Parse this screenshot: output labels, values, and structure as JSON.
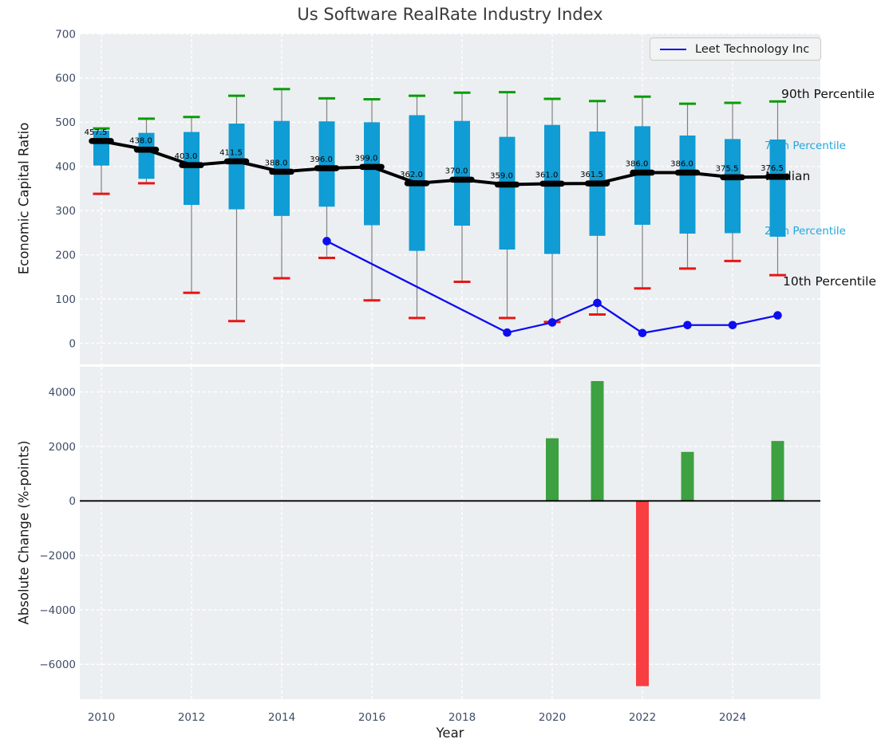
{
  "title": "Us Software RealRate Industry Index",
  "xlabel": "Year",
  "xticks": [
    2010,
    2012,
    2014,
    2016,
    2018,
    2020,
    2022,
    2024
  ],
  "top_panel": {
    "ylabel": "Economic Capital Ratio",
    "yticks": [
      0,
      100,
      200,
      300,
      400,
      500,
      600,
      700
    ],
    "legend_label": "Leet Technology Inc",
    "annotations": {
      "p90": "90th Percentile",
      "p75": "75th Percentile",
      "median": "Median",
      "p25": "25th Percentile",
      "p10": "10th Percentile"
    }
  },
  "bottom_panel": {
    "ylabel": "Absolute Change (%-points)",
    "yticks": [
      4000,
      2000,
      0,
      -2000,
      -4000,
      -6000
    ]
  },
  "chart_data": [
    {
      "type": "boxplot",
      "panel": "top",
      "title": "Us Software RealRate Industry Index",
      "xlabel": "Year",
      "ylabel": "Economic Capital Ratio",
      "ylim": [
        -48,
        701
      ],
      "xlim": [
        2009.5,
        2026
      ],
      "grid": true,
      "years": [
        2010,
        2011,
        2012,
        2013,
        2014,
        2015,
        2016,
        2017,
        2018,
        2019,
        2020,
        2021,
        2022,
        2023,
        2024,
        2025
      ],
      "p90": [
        486,
        508,
        512,
        560,
        575,
        554,
        552,
        560,
        567,
        568,
        553,
        548,
        558,
        542,
        544,
        547
      ],
      "q3": [
        481,
        476,
        478,
        497,
        503,
        502,
        500,
        516,
        503,
        467,
        494,
        479,
        491,
        470,
        462,
        461
      ],
      "median": [
        457.5,
        438.0,
        403.0,
        411.5,
        388.0,
        396.0,
        399.0,
        362.0,
        370.0,
        359.0,
        361.0,
        361.5,
        386.0,
        386.0,
        375.5,
        376.5
      ],
      "q1": [
        402,
        372,
        313,
        303,
        288,
        309,
        267,
        209,
        266,
        212,
        202,
        243,
        268,
        248,
        249,
        241
      ],
      "p10": [
        338,
        362,
        114,
        50,
        147,
        193,
        97,
        57,
        139,
        57,
        48,
        65,
        124,
        169,
        186,
        154
      ],
      "company_line": {
        "name": "Leet Technology Inc",
        "years": [
          2015,
          2019,
          2020,
          2021,
          2022,
          2023,
          2024,
          2025
        ],
        "values": [
          231,
          24,
          47,
          91,
          23,
          41,
          41,
          63
        ]
      },
      "legend_position": "upper right"
    },
    {
      "type": "bar",
      "panel": "bottom",
      "xlabel": "Year",
      "ylabel": "Absolute Change (%-points)",
      "ylim": [
        -7280,
        4930
      ],
      "grid": true,
      "years": [
        2020,
        2021,
        2022,
        2023,
        2025
      ],
      "values": [
        2300,
        4400,
        -6800,
        1800,
        2200
      ],
      "positive_color": "#3da041",
      "negative_color": "#f83e41"
    }
  ],
  "colors": {
    "axes_background": "#eceff1",
    "gridline": "#ffffff",
    "tick_label": "#3e4d66",
    "box_fill": "#109cd4",
    "whisker": "#808080",
    "cap_90th": "#0a9c0a",
    "cap_10th": "#e81616",
    "median_line": "#000000",
    "company_line": "#0d0df2",
    "bar_positive": "#3da041",
    "bar_negative": "#f83e41",
    "annotation_percentile_cyan": "#22a7de",
    "annotation_black": "#111111",
    "title_color": "#3a3a3a"
  }
}
